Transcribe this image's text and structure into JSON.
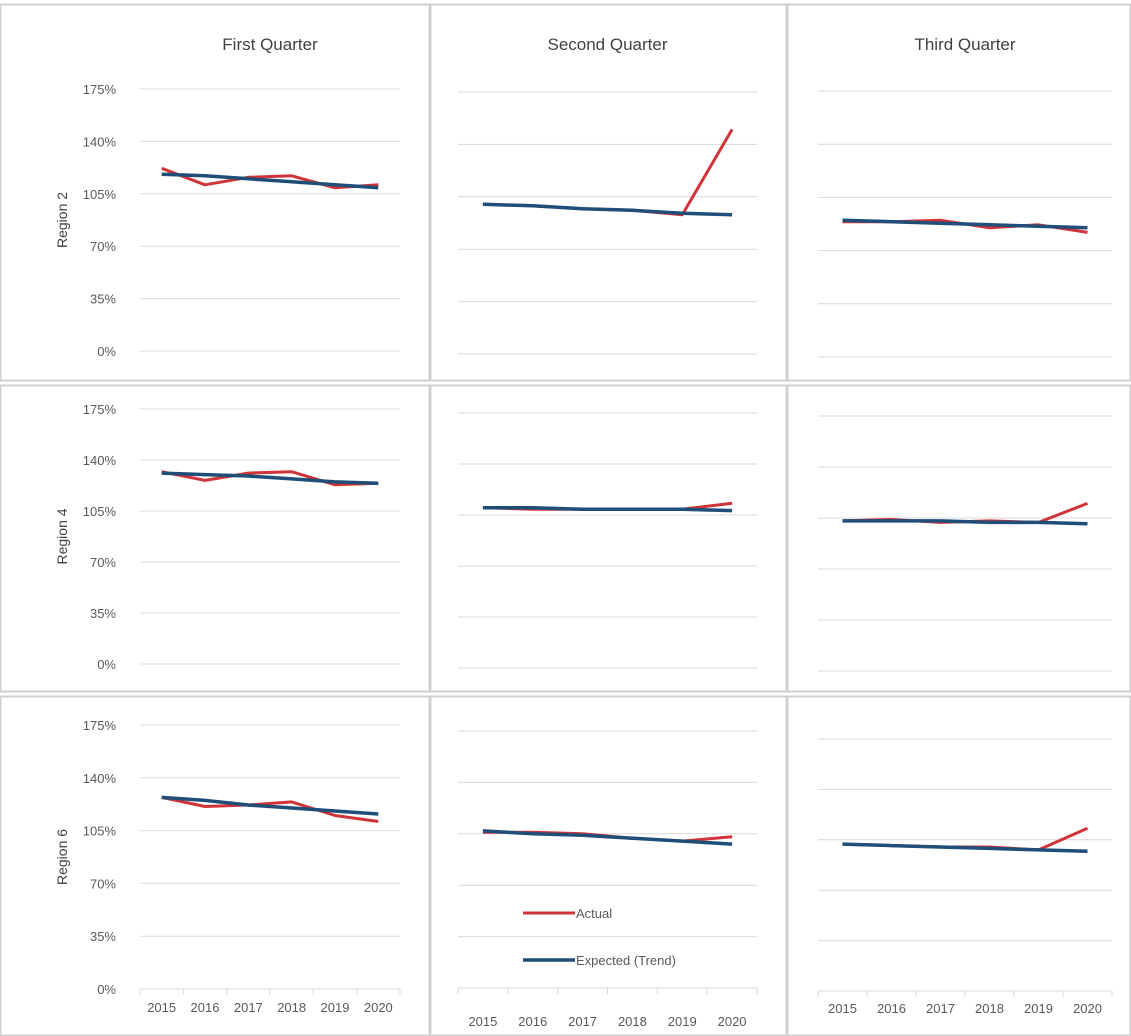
{
  "chart_data": {
    "type": "line",
    "x": [
      "2015",
      "2016",
      "2017",
      "2018",
      "2019",
      "2020"
    ],
    "y_ticks": [
      "175%",
      "140%",
      "105%",
      "70%",
      "35%",
      "0%"
    ],
    "ylim": [
      0,
      175
    ],
    "columns": [
      "First Quarter",
      "Second Quarter",
      "Third Quarter"
    ],
    "rows": [
      "Region 2",
      "Region 4",
      "Region 6"
    ],
    "series_names": [
      "Actual",
      "Expected (Trend)"
    ],
    "colors": {
      "actual": "#d13438",
      "expected": "#1f4e79",
      "grid": "#d9d9d9",
      "border": "#d0d0d0"
    },
    "grid": true,
    "legend": "bottom-left of Region 6 / Second Quarter panel",
    "panels": [
      {
        "row": 0,
        "col": 0,
        "actual": [
          122,
          111,
          116,
          117,
          109,
          111
        ],
        "expected": [
          118,
          117,
          115,
          113,
          111,
          109
        ]
      },
      {
        "row": 0,
        "col": 1,
        "actual": [
          100,
          99,
          97,
          96,
          93,
          150
        ],
        "expected": [
          100,
          99,
          97,
          96,
          94,
          93
        ]
      },
      {
        "row": 0,
        "col": 2,
        "actual": [
          89,
          89,
          90,
          85,
          87,
          82
        ],
        "expected": [
          90,
          89,
          88,
          87,
          86,
          85
        ]
      },
      {
        "row": 1,
        "col": 0,
        "actual": [
          132,
          126,
          131,
          132,
          123,
          124
        ],
        "expected": [
          131,
          130,
          129,
          127,
          125,
          124
        ]
      },
      {
        "row": 1,
        "col": 1,
        "actual": [
          110,
          109,
          109,
          109,
          109,
          113
        ],
        "expected": [
          110,
          110,
          109,
          109,
          109,
          108
        ]
      },
      {
        "row": 1,
        "col": 2,
        "actual": [
          103,
          104,
          102,
          103,
          102,
          115
        ],
        "expected": [
          103,
          103,
          103,
          102,
          102,
          101
        ]
      },
      {
        "row": 2,
        "col": 0,
        "actual": [
          127,
          121,
          122,
          124,
          115,
          111
        ],
        "expected": [
          127,
          125,
          122,
          120,
          118,
          116
        ]
      },
      {
        "row": 2,
        "col": 1,
        "actual": [
          106,
          106,
          105,
          102,
          100,
          103
        ],
        "expected": [
          107,
          105,
          104,
          102,
          100,
          98
        ]
      },
      {
        "row": 2,
        "col": 2,
        "actual": [
          102,
          101,
          100,
          100,
          98,
          113
        ],
        "expected": [
          102,
          101,
          100,
          99,
          98,
          97
        ]
      }
    ]
  }
}
